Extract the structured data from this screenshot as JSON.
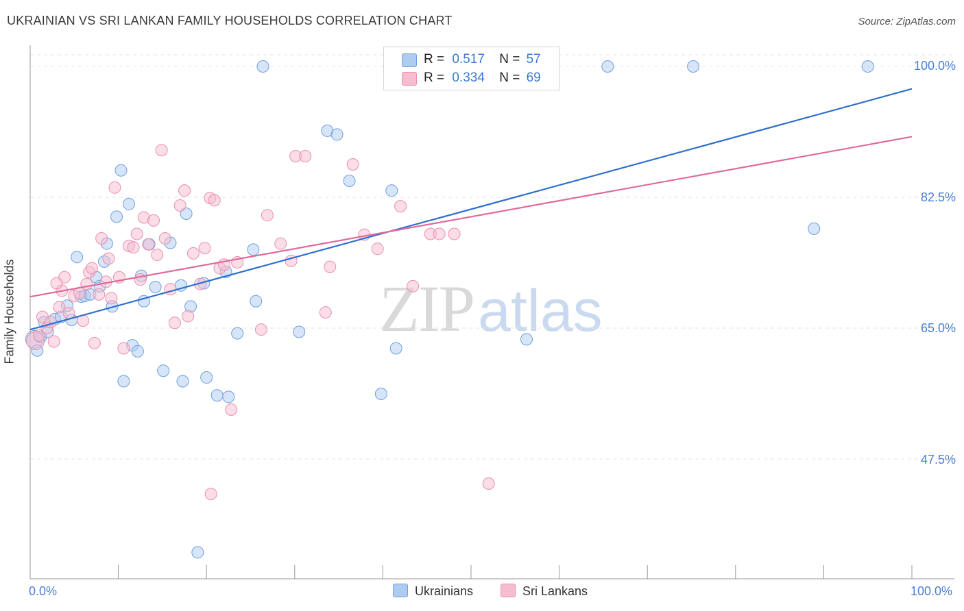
{
  "header": {
    "title": "UKRAINIAN VS SRI LANKAN FAMILY HOUSEHOLDS CORRELATION CHART",
    "source": "Source: ZipAtlas.com"
  },
  "watermark": {
    "zip": "ZIP",
    "atlas": "atlas"
  },
  "colors": {
    "ukrainians_fill": "#aecbf0",
    "ukrainians_stroke": "#6f9fdc",
    "ukrainians_line": "#2f6fcf",
    "srilankans_fill": "#f6bccf",
    "srilankans_stroke": "#ea8fae",
    "srilankans_line": "#e0699a",
    "tick_label": "#4a7fd4",
    "grid": "#e3e3e3"
  },
  "legend": {
    "rows": [
      {
        "r_label": "R =",
        "r_value": "0.517",
        "n_label": "N =",
        "n_value": "57"
      },
      {
        "r_label": "R =",
        "r_value": "0.334",
        "n_label": "N =",
        "n_value": "69"
      }
    ],
    "bottom": [
      "Ukrainians",
      "Sri Lankans"
    ]
  },
  "chart_data": {
    "type": "scatter",
    "title": "UKRAINIAN VS SRI LANKAN FAMILY HOUSEHOLDS CORRELATION CHART",
    "xlabel": "",
    "ylabel": "Family Households",
    "xlim": [
      0,
      100
    ],
    "ylim": [
      32.5,
      101.5
    ],
    "x_tick_labels": [
      "0.0%",
      "100.0%"
    ],
    "y_ticks": [
      47.5,
      65.0,
      82.5,
      100.0
    ],
    "y_tick_labels": [
      "47.5%",
      "65.0%",
      "82.5%",
      "100.0%"
    ],
    "grid": true,
    "legend_placement": "top-center",
    "series": [
      {
        "name": "Ukrainians",
        "r": 0.517,
        "n": 57,
        "trend": {
          "x": [
            0,
            100
          ],
          "y": [
            64.8,
            97.0
          ]
        },
        "points": [
          [
            0.5,
            63.5
          ],
          [
            0.8,
            62.0
          ],
          [
            1.2,
            63.8
          ],
          [
            1.6,
            65.8
          ],
          [
            2.0,
            64.5
          ],
          [
            2.8,
            66.2
          ],
          [
            3.5,
            66.5
          ],
          [
            4.2,
            68.0
          ],
          [
            4.7,
            66.1
          ],
          [
            5.3,
            74.5
          ],
          [
            5.8,
            69.2
          ],
          [
            6.2,
            69.3
          ],
          [
            6.8,
            69.5
          ],
          [
            7.5,
            71.8
          ],
          [
            7.9,
            70.6
          ],
          [
            8.4,
            73.9
          ],
          [
            8.7,
            76.3
          ],
          [
            9.3,
            67.9
          ],
          [
            9.8,
            79.9
          ],
          [
            10.3,
            86.1
          ],
          [
            10.6,
            57.9
          ],
          [
            11.2,
            81.6
          ],
          [
            11.6,
            62.7
          ],
          [
            12.2,
            61.9
          ],
          [
            12.6,
            72.0
          ],
          [
            12.9,
            68.6
          ],
          [
            13.5,
            76.2
          ],
          [
            14.2,
            70.5
          ],
          [
            15.1,
            59.3
          ],
          [
            15.9,
            76.4
          ],
          [
            17.1,
            70.7
          ],
          [
            17.3,
            57.9
          ],
          [
            17.7,
            80.3
          ],
          [
            18.2,
            67.9
          ],
          [
            19.7,
            71.0
          ],
          [
            20.0,
            58.4
          ],
          [
            21.2,
            56.0
          ],
          [
            22.2,
            72.5
          ],
          [
            22.5,
            55.8
          ],
          [
            23.5,
            64.3
          ],
          [
            25.3,
            75.5
          ],
          [
            25.6,
            68.6
          ],
          [
            26.4,
            100.0
          ],
          [
            30.5,
            64.5
          ],
          [
            33.7,
            91.4
          ],
          [
            34.8,
            90.9
          ],
          [
            36.2,
            84.7
          ],
          [
            39.8,
            56.2
          ],
          [
            41.0,
            83.4
          ],
          [
            41.5,
            62.3
          ],
          [
            56.3,
            63.5
          ],
          [
            65.5,
            100.0
          ],
          [
            75.2,
            100.0
          ],
          [
            88.9,
            78.3
          ],
          [
            95.0,
            100.0
          ],
          [
            56.4,
            100.0
          ],
          [
            19.0,
            35.0
          ]
        ]
      },
      {
        "name": "Sri Lankans",
        "r": 0.334,
        "n": 69,
        "trend": {
          "x": [
            0,
            100
          ],
          "y": [
            69.2,
            90.6
          ]
        },
        "points": [
          [
            0.6,
            63.3
          ],
          [
            1.0,
            64.0
          ],
          [
            1.4,
            66.5
          ],
          [
            1.9,
            65.0
          ],
          [
            2.3,
            65.8
          ],
          [
            2.7,
            63.2
          ],
          [
            3.3,
            67.8
          ],
          [
            3.6,
            70.0
          ],
          [
            3.9,
            71.8
          ],
          [
            4.4,
            67.0
          ],
          [
            5.0,
            69.3
          ],
          [
            5.6,
            69.7
          ],
          [
            6.0,
            66.0
          ],
          [
            6.4,
            70.9
          ],
          [
            6.7,
            72.5
          ],
          [
            7.0,
            73.0
          ],
          [
            7.3,
            63.0
          ],
          [
            7.8,
            69.5
          ],
          [
            8.1,
            77.0
          ],
          [
            8.6,
            71.2
          ],
          [
            8.9,
            74.3
          ],
          [
            9.2,
            69.0
          ],
          [
            9.6,
            83.8
          ],
          [
            10.1,
            71.8
          ],
          [
            10.6,
            62.3
          ],
          [
            11.2,
            76.0
          ],
          [
            11.7,
            75.8
          ],
          [
            12.1,
            77.6
          ],
          [
            12.5,
            71.5
          ],
          [
            12.9,
            79.8
          ],
          [
            13.4,
            76.2
          ],
          [
            14.0,
            79.4
          ],
          [
            14.4,
            74.8
          ],
          [
            14.9,
            88.8
          ],
          [
            15.3,
            77.0
          ],
          [
            15.9,
            70.2
          ],
          [
            16.4,
            65.7
          ],
          [
            17.0,
            81.4
          ],
          [
            17.5,
            83.4
          ],
          [
            17.9,
            66.6
          ],
          [
            18.5,
            75.0
          ],
          [
            19.3,
            70.9
          ],
          [
            19.8,
            75.7
          ],
          [
            20.4,
            82.4
          ],
          [
            20.9,
            82.1
          ],
          [
            21.5,
            73.0
          ],
          [
            22.0,
            73.5
          ],
          [
            22.8,
            54.1
          ],
          [
            23.5,
            73.8
          ],
          [
            26.2,
            64.8
          ],
          [
            26.9,
            80.1
          ],
          [
            28.4,
            76.3
          ],
          [
            29.6,
            74.0
          ],
          [
            30.1,
            88.0
          ],
          [
            31.2,
            88.0
          ],
          [
            33.5,
            67.1
          ],
          [
            34.0,
            73.2
          ],
          [
            36.6,
            86.9
          ],
          [
            37.9,
            77.5
          ],
          [
            39.4,
            75.6
          ],
          [
            42.0,
            81.3
          ],
          [
            43.4,
            70.6
          ],
          [
            45.4,
            77.6
          ],
          [
            46.4,
            77.6
          ],
          [
            48.1,
            77.6
          ],
          [
            52.8,
            100.0
          ],
          [
            52.0,
            44.2
          ],
          [
            20.5,
            42.8
          ],
          [
            3.0,
            71.0
          ]
        ]
      }
    ]
  }
}
